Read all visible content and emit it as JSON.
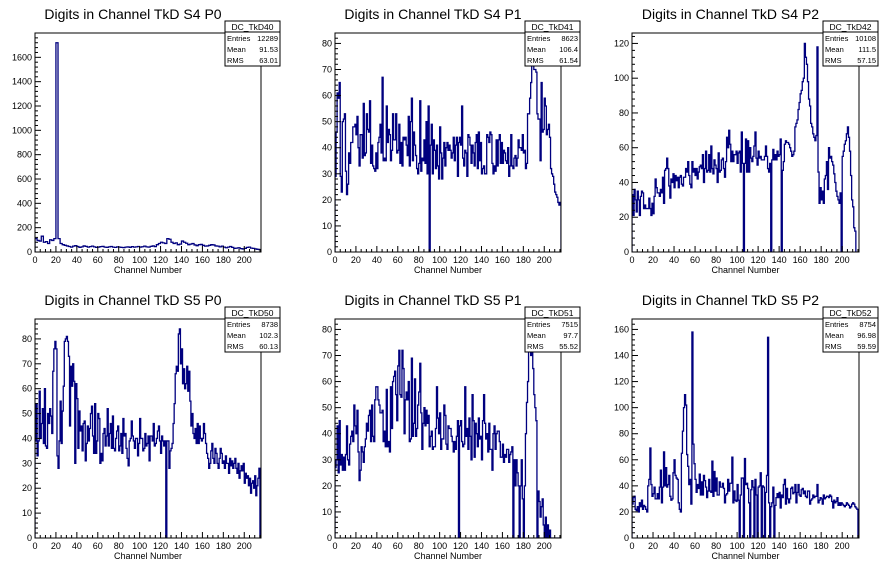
{
  "chart_data": [
    {
      "type": "histogram",
      "title": "Digits in Channel TkD S4 P0",
      "xlabel": "Channel Number",
      "stats": {
        "name": "DC_TkD40",
        "entries": "12289",
        "mean": "91.53",
        "rms": "63.01"
      },
      "xlim": [
        0,
        216
      ],
      "ylim": [
        0,
        1800
      ],
      "xticks": [
        0,
        20,
        40,
        60,
        80,
        100,
        120,
        140,
        160,
        180,
        200
      ],
      "yticks": [
        0,
        200,
        400,
        600,
        800,
        1000,
        1200,
        1400,
        1600
      ],
      "bin_width": 2,
      "values": [
        110,
        95,
        90,
        130,
        80,
        85,
        70,
        100,
        95,
        110,
        1720,
        110,
        70,
        60,
        55,
        50,
        45,
        40,
        48,
        52,
        45,
        38,
        42,
        50,
        46,
        40,
        44,
        48,
        42,
        38,
        40,
        44,
        46,
        40,
        38,
        42,
        45,
        40,
        38,
        42,
        40,
        38,
        36,
        40,
        42,
        38,
        44,
        40,
        42,
        45,
        40,
        43,
        48,
        42,
        40,
        46,
        50,
        44,
        60,
        70,
        80,
        75,
        70,
        110,
        105,
        80,
        70,
        75,
        60,
        65,
        90,
        80,
        72,
        60,
        65,
        70,
        58,
        52,
        60,
        62,
        55,
        48,
        50,
        55,
        60,
        58,
        50,
        48,
        42,
        48,
        40,
        35,
        40,
        45,
        38,
        30,
        32,
        35,
        28,
        25,
        30,
        38,
        40,
        32,
        30,
        25,
        22,
        20
      ]
    },
    {
      "type": "histogram",
      "title": "Digits in Channel TkD S4 P1",
      "xlabel": "Channel Number",
      "stats": {
        "name": "DC_TkD41",
        "entries": "8623",
        "mean": "106.4",
        "rms": "61.54"
      },
      "xlim": [
        0,
        216
      ],
      "ylim": [
        0,
        84
      ],
      "xticks": [
        0,
        20,
        40,
        60,
        80,
        100,
        120,
        140,
        160,
        180,
        200
      ],
      "yticks": [
        0,
        10,
        20,
        30,
        40,
        50,
        60,
        70,
        80
      ],
      "bin_width": 1,
      "values": [
        29,
        46,
        61,
        59,
        65,
        29,
        23,
        50,
        51,
        53,
        31,
        22,
        26,
        38,
        34,
        42,
        42,
        48,
        48,
        49,
        45,
        52,
        40,
        33,
        45,
        45,
        36,
        57,
        37,
        38,
        53,
        47,
        46,
        58,
        34,
        41,
        33,
        32,
        31,
        38,
        32,
        42,
        44,
        49,
        38,
        67,
        35,
        36,
        35,
        56,
        42,
        47,
        45,
        35,
        39,
        53,
        43,
        43,
        53,
        38,
        39,
        49,
        34,
        42,
        33,
        44,
        43,
        44,
        41,
        37,
        52,
        33,
        50,
        59,
        35,
        46,
        41,
        37,
        32,
        30,
        34,
        58,
        31,
        36,
        35,
        43,
        34,
        50,
        30,
        56,
        0,
        41,
        49,
        30,
        43,
        39,
        32,
        41,
        33,
        28,
        48,
        38,
        28,
        36,
        42,
        33,
        40,
        42,
        39,
        41,
        39,
        36,
        38,
        44,
        35,
        41,
        44,
        29,
        42,
        44,
        41,
        56,
        36,
        33,
        39,
        38,
        29,
        45,
        44,
        41,
        34,
        41,
        38,
        33,
        42,
        45,
        32,
        46,
        35,
        42,
        30,
        32,
        33,
        30,
        30,
        45,
        44,
        42,
        46,
        45,
        34,
        30,
        33,
        31,
        43,
        33,
        43,
        45,
        34,
        42,
        34,
        39,
        38,
        35,
        34,
        40,
        29,
        33,
        45,
        33,
        32,
        36,
        37,
        33,
        36,
        43,
        40,
        40,
        39,
        45,
        38,
        39,
        32,
        34,
        53,
        53,
        59,
        65,
        80,
        78,
        70,
        70,
        69,
        53,
        51,
        51,
        35,
        65,
        46,
        47,
        59,
        56,
        45,
        47,
        49,
        44,
        32,
        30,
        29,
        26,
        23,
        22,
        21,
        19,
        18,
        19
      ]
    },
    {
      "type": "histogram",
      "title": "Digits in Channel TkD S4 P2",
      "xlabel": "Channel Number",
      "stats": {
        "name": "DC_TkD42",
        "entries": "10108",
        "mean": "111.5",
        "rms": "57.15"
      },
      "xlim": [
        0,
        216
      ],
      "ylim": [
        0,
        126
      ],
      "xticks": [
        0,
        20,
        40,
        60,
        80,
        100,
        120,
        140,
        160,
        180,
        200
      ],
      "yticks": [
        0,
        20,
        40,
        60,
        80,
        100,
        120
      ],
      "bin_width": 1,
      "values": [
        33,
        21,
        36,
        30,
        23,
        35,
        30,
        21,
        32,
        35,
        34,
        25,
        27,
        25,
        25,
        25,
        31,
        25,
        21,
        28,
        22,
        32,
        42,
        37,
        34,
        34,
        32,
        36,
        34,
        43,
        28,
        47,
        48,
        54,
        48,
        38,
        31,
        42,
        40,
        45,
        37,
        44,
        41,
        43,
        37,
        43,
        44,
        39,
        38,
        43,
        43,
        48,
        46,
        52,
        44,
        39,
        37,
        52,
        46,
        48,
        44,
        48,
        42,
        46,
        49,
        50,
        48,
        56,
        40,
        48,
        58,
        46,
        47,
        56,
        46,
        61,
        48,
        45,
        53,
        50,
        48,
        40,
        57,
        46,
        47,
        53,
        54,
        48,
        43,
        52,
        66,
        60,
        70,
        62,
        52,
        58,
        52,
        56,
        56,
        58,
        51,
        57,
        58,
        46,
        69,
        51,
        0,
        51,
        65,
        46,
        64,
        46,
        60,
        54,
        52,
        55,
        61,
        69,
        54,
        50,
        58,
        54,
        55,
        53,
        53,
        53,
        55,
        61,
        55,
        48,
        46,
        51,
        0,
        53,
        59,
        53,
        56,
        53,
        58,
        55,
        56,
        65,
        0,
        47,
        52,
        62,
        64,
        63,
        63,
        62,
        60,
        58,
        55,
        56,
        58,
        72,
        74,
        76,
        82,
        86,
        91,
        93,
        98,
        100,
        120,
        112,
        108,
        98,
        88,
        84,
        74,
        72,
        68,
        66,
        64,
        67,
        118,
        46,
        28,
        37,
        30,
        35,
        28,
        42,
        44,
        52,
        36,
        60,
        54,
        55,
        52,
        50,
        45,
        40,
        35,
        32,
        30,
        28,
        34,
        0,
        55,
        58,
        62,
        64,
        68,
        72,
        66,
        58,
        44,
        30,
        26,
        14,
        12
      ]
    },
    {
      "type": "histogram",
      "title": "Digits in Channel TkD S5 P0",
      "xlabel": "Channel Number",
      "stats": {
        "name": "DC_TkD50",
        "entries": "8738",
        "mean": "102.3",
        "rms": "60.13"
      },
      "xlim": [
        0,
        216
      ],
      "ylim": [
        0,
        88
      ],
      "xticks": [
        0,
        20,
        40,
        60,
        80,
        100,
        120,
        140,
        160,
        180,
        200
      ],
      "yticks": [
        0,
        10,
        20,
        30,
        40,
        50,
        60,
        70,
        80
      ],
      "bin_width": 1,
      "values": [
        39,
        54,
        33,
        39,
        59,
        40,
        46,
        52,
        38,
        60,
        37,
        36,
        50,
        46,
        52,
        49,
        42,
        67,
        76,
        79,
        76,
        33,
        28,
        39,
        55,
        38,
        51,
        61,
        79,
        80,
        81,
        79,
        73,
        45,
        69,
        61,
        70,
        63,
        30,
        62,
        56,
        36,
        51,
        43,
        45,
        35,
        46,
        47,
        31,
        38,
        45,
        39,
        44,
        50,
        53,
        41,
        34,
        54,
        34,
        39,
        50,
        48,
        30,
        34,
        31,
        42,
        44,
        37,
        41,
        52,
        37,
        42,
        46,
        36,
        49,
        36,
        35,
        40,
        43,
        45,
        35,
        37,
        42,
        34,
        48,
        41,
        42,
        36,
        32,
        29,
        39,
        40,
        47,
        41,
        39,
        36,
        40,
        40,
        33,
        38,
        48,
        40,
        40,
        35,
        36,
        42,
        37,
        38,
        41,
        31,
        41,
        41,
        39,
        46,
        37,
        38,
        40,
        43,
        45,
        39,
        34,
        41,
        39,
        37,
        39,
        0,
        39,
        39,
        28,
        35,
        36,
        38,
        46,
        54,
        66,
        69,
        67,
        82,
        84,
        70,
        76,
        62,
        68,
        60,
        62,
        69,
        59,
        67,
        55,
        45,
        50,
        42,
        40,
        44,
        38,
        46,
        38,
        45,
        40,
        39,
        40,
        46,
        42,
        38,
        34,
        32,
        28,
        30,
        35,
        38,
        32,
        30,
        36,
        34,
        30,
        28,
        32,
        36,
        34,
        30,
        31,
        28,
        33,
        30,
        30,
        26,
        32,
        29,
        31,
        28,
        30,
        32,
        28,
        26,
        30,
        24,
        27,
        29,
        27,
        30,
        22,
        26,
        24,
        25,
        21,
        24,
        18,
        22,
        23,
        20,
        25,
        17,
        21,
        24,
        28,
        0
      ]
    },
    {
      "type": "histogram",
      "title": "Digits in Channel TkD S5 P1",
      "xlabel": "Channel Number",
      "stats": {
        "name": "DC_TkD51",
        "entries": "7515",
        "mean": "97.7",
        "rms": "55.52"
      },
      "xlim": [
        0,
        216
      ],
      "ylim": [
        0,
        84
      ],
      "xticks": [
        0,
        20,
        40,
        60,
        80,
        100,
        120,
        140,
        160,
        180,
        200
      ],
      "yticks": [
        0,
        10,
        20,
        30,
        40,
        50,
        60,
        70,
        80
      ],
      "bin_width": 1,
      "values": [
        27,
        30,
        43,
        25,
        45,
        28,
        32,
        26,
        31,
        26,
        32,
        43,
        30,
        28,
        36,
        39,
        41,
        37,
        51,
        43,
        40,
        49,
        33,
        22,
        26,
        35,
        33,
        29,
        35,
        38,
        44,
        41,
        47,
        49,
        37,
        51,
        39,
        37,
        53,
        58,
        58,
        53,
        51,
        48,
        48,
        49,
        37,
        41,
        35,
        57,
        35,
        37,
        33,
        58,
        42,
        60,
        62,
        64,
        55,
        45,
        66,
        72,
        55,
        54,
        72,
        65,
        40,
        53,
        56,
        53,
        60,
        37,
        38,
        69,
        39,
        44,
        61,
        39,
        42,
        51,
        56,
        67,
        48,
        34,
        44,
        50,
        43,
        49,
        44,
        47,
        35,
        39,
        41,
        34,
        35,
        35,
        42,
        58,
        46,
        40,
        48,
        34,
        38,
        38,
        51,
        47,
        36,
        34,
        43,
        42,
        42,
        39,
        37,
        33,
        37,
        34,
        39,
        45,
        0,
        43,
        45,
        37,
        35,
        36,
        58,
        39,
        42,
        34,
        46,
        39,
        30,
        55,
        45,
        31,
        44,
        40,
        35,
        46,
        38,
        39,
        30,
        45,
        55,
        44,
        38,
        40,
        33,
        44,
        34,
        34,
        26,
        40,
        43,
        34,
        40,
        41,
        41,
        37,
        31,
        31,
        36,
        29,
        32,
        31,
        34,
        34,
        29,
        32,
        33,
        35,
        0,
        30,
        20,
        30,
        25,
        20,
        0,
        20,
        30,
        15,
        0,
        20,
        40,
        52,
        60,
        75,
        80,
        70,
        78,
        65,
        55,
        50,
        45,
        0,
        18,
        14,
        8,
        12,
        15,
        5,
        0,
        8,
        0,
        5,
        0,
        3,
        0,
        0,
        0,
        0,
        0,
        0,
        0,
        0,
        0,
        0,
        0
      ]
    },
    {
      "type": "histogram",
      "title": "Digits in Channel TkD S5 P2",
      "xlabel": "Channel Number",
      "stats": {
        "name": "DC_TkD52",
        "entries": "8754",
        "mean": "96.98",
        "rms": "59.59"
      },
      "xlim": [
        0,
        216
      ],
      "ylim": [
        0,
        168
      ],
      "xticks": [
        0,
        20,
        40,
        60,
        80,
        100,
        120,
        140,
        160,
        180,
        200
      ],
      "yticks": [
        0,
        20,
        40,
        60,
        80,
        100,
        120,
        140,
        160
      ],
      "bin_width": 1,
      "values": [
        26,
        31,
        32,
        22,
        21,
        24,
        20,
        27,
        24,
        29,
        22,
        25,
        24,
        22,
        20,
        40,
        45,
        69,
        41,
        32,
        34,
        39,
        30,
        30,
        34,
        30,
        39,
        52,
        27,
        39,
        66,
        40,
        54,
        39,
        41,
        48,
        32,
        29,
        30,
        50,
        60,
        48,
        46,
        45,
        27,
        22,
        20,
        65,
        82,
        100,
        110,
        102,
        64,
        55,
        41,
        45,
        26,
        158,
        72,
        57,
        45,
        35,
        41,
        38,
        49,
        33,
        43,
        33,
        48,
        44,
        39,
        31,
        36,
        45,
        36,
        35,
        59,
        32,
        51,
        36,
        46,
        33,
        33,
        43,
        39,
        39,
        42,
        38,
        27,
        33,
        34,
        45,
        36,
        42,
        42,
        62,
        27,
        36,
        29,
        28,
        41,
        29,
        0,
        33,
        46,
        46,
        0,
        61,
        41,
        42,
        38,
        27,
        0,
        37,
        44,
        39,
        0,
        45,
        33,
        0,
        39,
        40,
        50,
        0,
        40,
        39,
        0,
        35,
        48,
        154,
        27,
        0,
        24,
        27,
        39,
        0,
        25,
        31,
        34,
        31,
        35,
        23,
        33,
        31,
        41,
        45,
        26,
        38,
        30,
        27,
        30,
        38,
        39,
        34,
        35,
        41,
        27,
        35,
        41,
        33,
        32,
        37,
        38,
        34,
        36,
        32,
        31,
        36,
        36,
        26,
        29,
        30,
        33,
        31,
        32,
        32,
        41,
        27,
        29,
        31,
        30,
        26,
        33,
        30,
        31,
        32,
        32,
        31,
        33,
        32,
        28,
        23,
        29,
        27,
        28,
        31,
        25,
        27,
        25,
        27,
        26,
        25,
        24,
        25,
        27,
        26,
        25,
        23,
        24,
        26,
        27,
        26,
        24,
        23,
        22
      ]
    }
  ],
  "colors": {
    "line": "#00007f",
    "frame": "#000000",
    "background": "#ffffff"
  }
}
